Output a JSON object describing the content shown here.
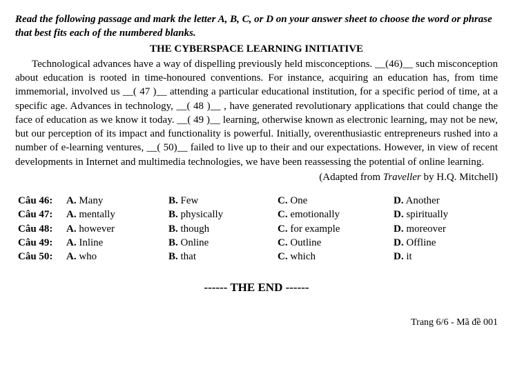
{
  "instructions": "Read the following passage and mark the letter A, B, C, or D on your answer sheet to choose the word or phrase that best fits each of the numbered blanks.",
  "title": "THE CYBERSPACE LEARNING INITIATIVE",
  "passage": "Technological advances have a way of dispelling previously held misconceptions. __(46)__ such misconception about education is rooted in time-honoured conventions. For instance, acquiring an education has, from time immemorial, involved us __( 47 )__ attending a particular educational institution, for a specific period of time, at a specific age. Advances in technology, __( 48 )__ , have generated revolutionary applications that could change the face of education as we know it today. __( 49 )__ learning, otherwise known as electronic learning, may not be new, but our perception of its impact and functionality is powerful. Initially, overenthusiastic entrepreneurs rushed into a number of e-learning ventures, __( 50)__ failed to live up to their and our expectations. However, in view of recent developments in Internet and multimedia technologies, we have been reassessing the potential of online learning.",
  "attribution_prefix": "(Adapted from ",
  "attribution_title": "Traveller",
  "attribution_suffix": " by H.Q. Mitchell)",
  "questions": [
    {
      "num": "Câu 46:",
      "A": "Many",
      "B": "Few",
      "C": "One",
      "D": "Another"
    },
    {
      "num": "Câu 47:",
      "A": "mentally",
      "B": "physically",
      "C": "emotionally",
      "D": "spiritually"
    },
    {
      "num": "Câu 48:",
      "A": "however",
      "B": "though",
      "C": "for example",
      "D": "moreover"
    },
    {
      "num": "Câu 49:",
      "A": "Inline",
      "B": "Online",
      "C": "Outline",
      "D": "Offline"
    },
    {
      "num": "Câu 50:",
      "A": "who",
      "B": "that",
      "C": "which",
      "D": "it"
    }
  ],
  "option_keys": {
    "A": "A.",
    "B": "B.",
    "C": "C.",
    "D": "D."
  },
  "the_end": "------ THE END ------",
  "footer": "Trang 6/6 - Mã đề 001",
  "colors": {
    "text": "#000000",
    "background": "#ffffff"
  },
  "typography": {
    "base_font_size_pt": 11,
    "font_family": "Times New Roman"
  }
}
